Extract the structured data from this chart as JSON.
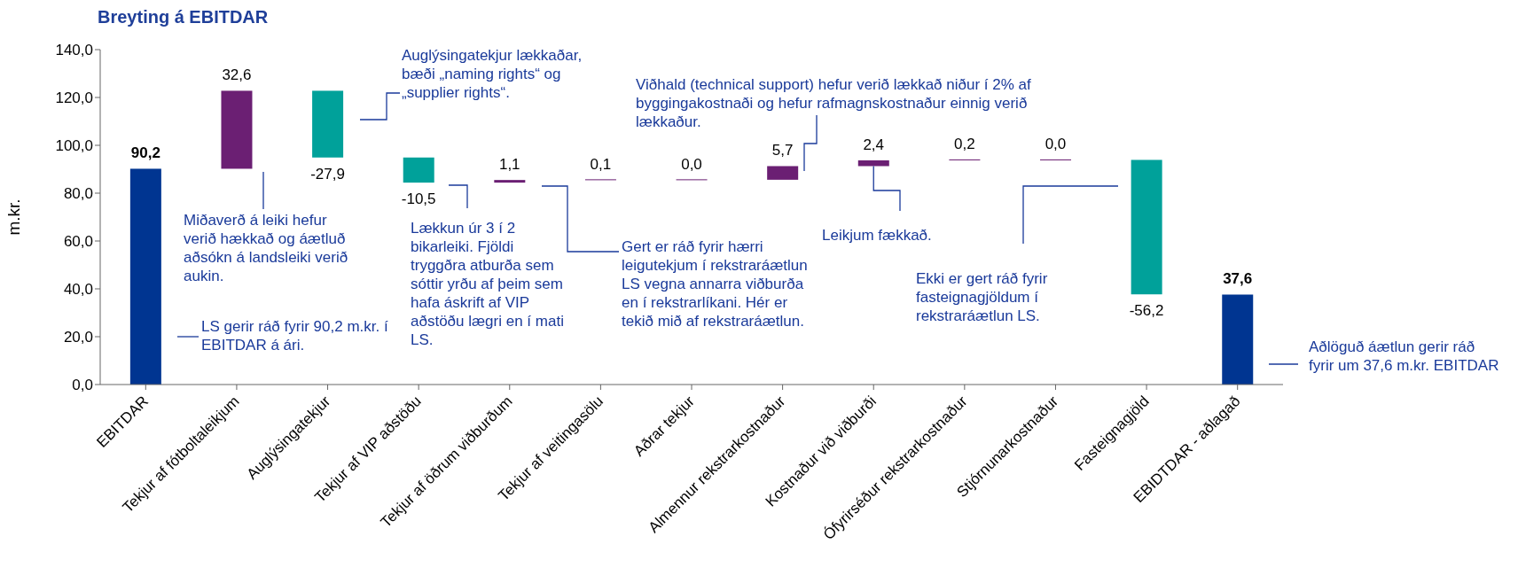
{
  "chart_data": {
    "type": "bar",
    "title": "Breyting á EBITDAR",
    "ylabel": "m.kr.",
    "categories": [
      "EBITDAR",
      "Tekjur af fótboltaleikjum",
      "Auglýsingatekjur",
      "Tekjur af VIP aðstöðu",
      "Tekjur af öðrum viðburðum",
      "Tekjur af veitingasölu",
      "Aðrar tekjur",
      "Almennur rekstrarkostnaður",
      "Kostnaður við viðburði",
      "Ófyrirséður rekstrarkostnaður",
      "Stjórnunarkostnaður",
      "Fasteignagjöld",
      "EBIDTDAR - aðlagað"
    ],
    "values": [
      90.2,
      32.6,
      -27.9,
      -10.5,
      1.1,
      0.1,
      0.0,
      5.7,
      2.4,
      0.2,
      0.0,
      -56.2,
      37.6
    ],
    "base": [
      0,
      90.2,
      122.8,
      94.9,
      84.4,
      85.5,
      85.6,
      85.6,
      91.3,
      93.7,
      93.9,
      93.9,
      0
    ],
    "colors": [
      "#003591",
      "#6b1f73",
      "#00a19a",
      "#00a19a",
      "#6b1f73",
      "#6b1f73",
      "#6b1f73",
      "#6b1f73",
      "#6b1f73",
      "#6b1f73",
      "#6b1f73",
      "#00a19a",
      "#003591"
    ],
    "value_labels": [
      "90,2",
      "32,6",
      "-27,9",
      "-10,5",
      "1,1",
      "0,1",
      "0,0",
      "5,7",
      "2,4",
      "0,2",
      "0,0",
      "-56,2",
      "37,6"
    ],
    "ylim": [
      0,
      140
    ],
    "yticks": [
      {
        "value": 0,
        "label": "0,0"
      },
      {
        "value": 20,
        "label": "20,0"
      },
      {
        "value": 40,
        "label": "40,0"
      },
      {
        "value": 60,
        "label": "60,0"
      },
      {
        "value": 80,
        "label": "80,0"
      },
      {
        "value": 100,
        "label": "100,0"
      },
      {
        "value": 120,
        "label": "120,0"
      },
      {
        "value": 140,
        "label": "140,0"
      }
    ],
    "grid": false,
    "legend": false,
    "annotations": [
      "LS gerir ráð fyrir 90,2 m.kr. í EBITDAR á ári.",
      "Miðaverð á leiki hefur verið hækkað og áætluð aðsókn á landsleiki verið aukin.",
      "Auglýsingatekjur lækkaðar, bæði „naming rights“ og „supplier rights“.",
      "Lækkun úr 3 í 2 bikarleiki. Fjöldi tryggðra atburða sem sóttir yrðu af þeim sem hafa áskrift af VIP aðstöðu lægri en í mati LS.",
      "Gert er ráð fyrir hærri leigutekjum í rekstraráætlun LS vegna annarra viðburða en í rekstrarlíkani. Hér er tekið mið af rekstraráætlun.",
      "Viðhald (technical support) hefur verið lækkað niður í 2% af byggingakostnaði og hefur rafmagnskostnaður einnig verið lækkaður.",
      {
        "text": "Leikjum fækkað.",
        "x": "Kostnaður við viðburði",
        "y": 91.3
      },
      "Ekki er gert ráð fyrir fasteignagjöldum í rekstraráætlun LS.",
      "Aðlöguð áætlun gerir ráð fyrir um 37,6 m.kr. EBITDAR"
    ]
  }
}
